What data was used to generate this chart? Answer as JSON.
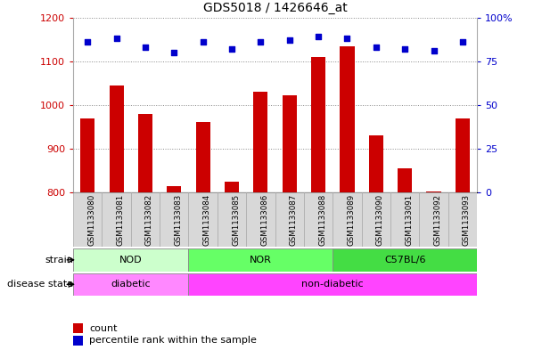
{
  "title": "GDS5018 / 1426646_at",
  "samples": [
    "GSM1133080",
    "GSM1133081",
    "GSM1133082",
    "GSM1133083",
    "GSM1133084",
    "GSM1133085",
    "GSM1133086",
    "GSM1133087",
    "GSM1133088",
    "GSM1133089",
    "GSM1133090",
    "GSM1133091",
    "GSM1133092",
    "GSM1133093"
  ],
  "counts": [
    970,
    1045,
    980,
    815,
    962,
    825,
    1030,
    1023,
    1110,
    1135,
    930,
    855,
    803,
    970
  ],
  "percentiles": [
    86,
    88,
    83,
    80,
    86,
    82,
    86,
    87,
    89,
    88,
    83,
    82,
    81,
    86
  ],
  "ylim_left": [
    800,
    1200
  ],
  "ylim_right": [
    0,
    100
  ],
  "yticks_left": [
    800,
    900,
    1000,
    1100,
    1200
  ],
  "yticks_right": [
    0,
    25,
    50,
    75,
    100
  ],
  "bar_color": "#cc0000",
  "dot_color": "#0000cc",
  "bar_bottom": 800,
  "strain_groups": [
    {
      "label": "NOD",
      "start": 0,
      "end": 3,
      "color": "#ccffcc"
    },
    {
      "label": "NOR",
      "start": 4,
      "end": 8,
      "color": "#66ff66"
    },
    {
      "label": "C57BL/6",
      "start": 9,
      "end": 13,
      "color": "#44dd44"
    }
  ],
  "disease_groups": [
    {
      "label": "diabetic",
      "start": 0,
      "end": 3,
      "color": "#ff88ff"
    },
    {
      "label": "non-diabetic",
      "start": 4,
      "end": 13,
      "color": "#ff44ff"
    }
  ],
  "strain_label": "strain",
  "disease_label": "disease state",
  "legend_count_label": "count",
  "legend_pct_label": "percentile rank within the sample",
  "bg_color": "#ffffff",
  "grid_color": "#888888",
  "tick_label_color_left": "#cc0000",
  "tick_label_color_right": "#0000cc",
  "xtick_bg_color": "#d8d8d8",
  "xtick_edge_color": "#aaaaaa"
}
